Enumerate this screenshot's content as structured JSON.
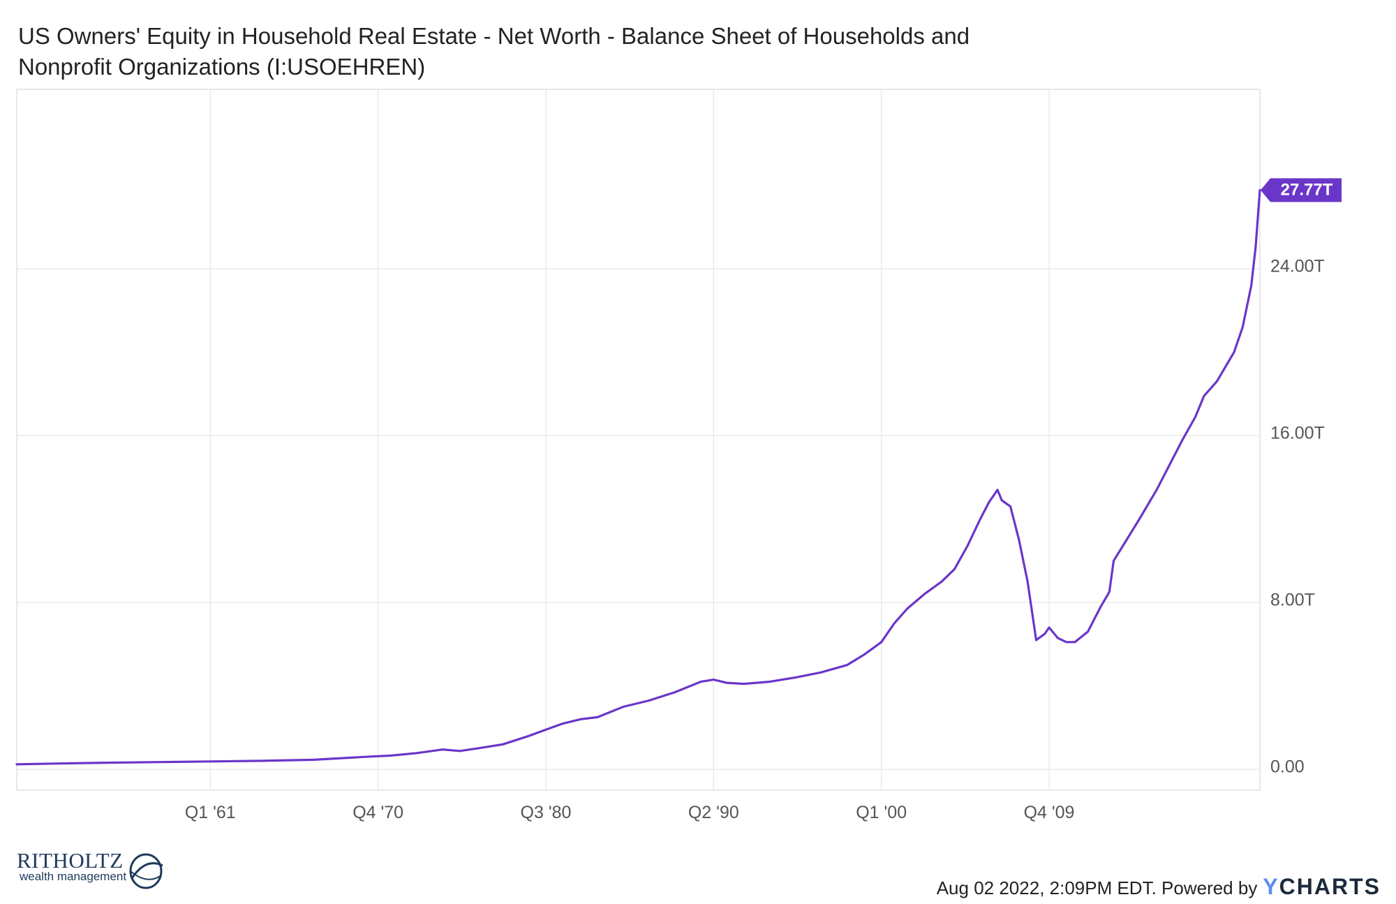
{
  "title_line1": "US Owners' Equity in Household Real Estate - Net Worth - Balance Sheet of Households and",
  "title_line2": "Nonprofit Organizations (I:USOEHREN)",
  "footer": {
    "timestamp": "Aug 02 2022, 2:09PM EDT. Powered by",
    "brand_y": "Y",
    "brand_rest": "CHARTS",
    "logo_name": "RITHOLTZ",
    "logo_sub": "wealth management"
  },
  "colors": {
    "line": "#6a36c9",
    "badge": "#6a36c9",
    "grid": "#e6e6e6",
    "axis_text": "#555555"
  },
  "chart_data": {
    "type": "line",
    "title": "US Owners' Equity in Household Real Estate - Net Worth - Balance Sheet of Households and Nonprofit Organizations (I:USOEHREN)",
    "x_tick_labels": [
      "Q1 '61",
      "Q4 '70",
      "Q3 '80",
      "Q2 '90",
      "Q1 '00",
      "Q4 '09"
    ],
    "x_tick_years": [
      1961.0,
      1970.75,
      1980.5,
      1990.25,
      2000.0,
      2009.75
    ],
    "xlim": [
      1949.75,
      2022.0
    ],
    "y_ticks": [
      0,
      8,
      16,
      24
    ],
    "y_tick_labels": [
      "0.00",
      "8.00T",
      "16.00T",
      "24.00T"
    ],
    "ylim": [
      -1.0,
      32.6
    ],
    "grid": true,
    "last_value_label": "27.77T",
    "series": [
      {
        "points": [
          [
            1949.75,
            0.24
          ],
          [
            1952.0,
            0.28
          ],
          [
            1955.0,
            0.32
          ],
          [
            1958.0,
            0.35
          ],
          [
            1961.0,
            0.38
          ],
          [
            1964.0,
            0.41
          ],
          [
            1967.0,
            0.46
          ],
          [
            1970.0,
            0.6
          ],
          [
            1971.5,
            0.66
          ],
          [
            1973.0,
            0.78
          ],
          [
            1974.5,
            0.95
          ],
          [
            1975.5,
            0.88
          ],
          [
            1976.5,
            1.0
          ],
          [
            1978.0,
            1.2
          ],
          [
            1979.5,
            1.6
          ],
          [
            1980.5,
            1.9
          ],
          [
            1981.5,
            2.2
          ],
          [
            1982.5,
            2.4
          ],
          [
            1983.5,
            2.5
          ],
          [
            1985.0,
            3.0
          ],
          [
            1986.5,
            3.3
          ],
          [
            1988.0,
            3.7
          ],
          [
            1989.5,
            4.2
          ],
          [
            1990.25,
            4.3
          ],
          [
            1991.0,
            4.15
          ],
          [
            1992.0,
            4.1
          ],
          [
            1993.5,
            4.2
          ],
          [
            1995.0,
            4.4
          ],
          [
            1996.5,
            4.65
          ],
          [
            1998.0,
            5.0
          ],
          [
            1999.0,
            5.5
          ],
          [
            2000.0,
            6.1
          ],
          [
            2000.75,
            7.0
          ],
          [
            2001.5,
            7.7
          ],
          [
            2002.5,
            8.4
          ],
          [
            2003.5,
            9.0
          ],
          [
            2004.25,
            9.6
          ],
          [
            2005.0,
            10.7
          ],
          [
            2005.75,
            12.0
          ],
          [
            2006.25,
            12.8
          ],
          [
            2006.75,
            13.4
          ],
          [
            2007.0,
            12.9
          ],
          [
            2007.5,
            12.6
          ],
          [
            2008.0,
            11.0
          ],
          [
            2008.5,
            9.0
          ],
          [
            2009.0,
            6.2
          ],
          [
            2009.5,
            6.5
          ],
          [
            2009.75,
            6.8
          ],
          [
            2010.25,
            6.3
          ],
          [
            2010.75,
            6.1
          ],
          [
            2011.25,
            6.1
          ],
          [
            2012.0,
            6.6
          ],
          [
            2012.75,
            7.8
          ],
          [
            2013.25,
            8.5
          ],
          [
            2013.5,
            10.0
          ],
          [
            2014.25,
            11.0
          ],
          [
            2015.0,
            12.0
          ],
          [
            2016.0,
            13.4
          ],
          [
            2016.75,
            14.6
          ],
          [
            2017.5,
            15.8
          ],
          [
            2018.25,
            16.9
          ],
          [
            2018.75,
            17.9
          ],
          [
            2019.5,
            18.6
          ],
          [
            2020.0,
            19.3
          ],
          [
            2020.5,
            20.0
          ],
          [
            2021.0,
            21.2
          ],
          [
            2021.5,
            23.2
          ],
          [
            2021.75,
            25.0
          ],
          [
            2022.0,
            27.77
          ]
        ]
      }
    ]
  }
}
